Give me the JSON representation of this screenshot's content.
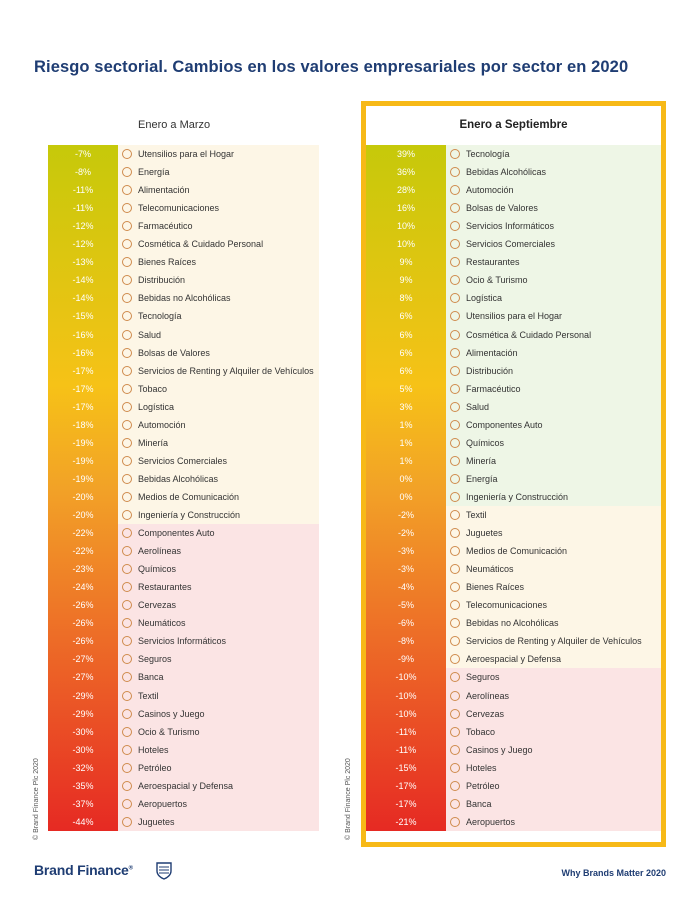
{
  "title": "Riesgo sectorial. Cambios en los valores empresariales por sector en 2020",
  "copyright": "© Brand Finance Plc 2020",
  "footer": "Why Brands Matter 2020",
  "brand": "Brand Finance",
  "brand_mark": "®",
  "colors": {
    "title": "#1f3d73",
    "highlight_frame": "#f7b917",
    "positive_zone": "#eef6e6",
    "neutral_zone": "#fdf6e6",
    "negative_zone": "#fbe4e4"
  },
  "chart_data": [
    {
      "type": "table",
      "title": "Enero a Marzo",
      "rows": [
        {
          "value": "-7%",
          "label": "Utensilios para el Hogar",
          "icon": "household-icon"
        },
        {
          "value": "-8%",
          "label": "Energía",
          "icon": "energy-icon"
        },
        {
          "value": "-11%",
          "label": "Alimentación",
          "icon": "food-icon"
        },
        {
          "value": "-11%",
          "label": "Telecomunicaciones",
          "icon": "telecom-icon"
        },
        {
          "value": "-12%",
          "label": "Farmacéutico",
          "icon": "pharma-icon"
        },
        {
          "value": "-12%",
          "label": "Cosmética & Cuidado Personal",
          "icon": "cosmetics-icon"
        },
        {
          "value": "-13%",
          "label": "Bienes Raíces",
          "icon": "real-estate-icon"
        },
        {
          "value": "-14%",
          "label": "Distribución",
          "icon": "retail-icon"
        },
        {
          "value": "-14%",
          "label": "Bebidas no Alcohólicas",
          "icon": "soft-drinks-icon"
        },
        {
          "value": "-15%",
          "label": "Tecnología",
          "icon": "tech-icon"
        },
        {
          "value": "-16%",
          "label": "Salud",
          "icon": "health-icon"
        },
        {
          "value": "-16%",
          "label": "Bolsas de Valores",
          "icon": "stock-exchange-icon"
        },
        {
          "value": "-17%",
          "label": "Servicios de Renting y Alquiler de Vehículos",
          "icon": "car-rental-icon"
        },
        {
          "value": "-17%",
          "label": "Tobaco",
          "icon": "tobacco-icon"
        },
        {
          "value": "-17%",
          "label": "Logística",
          "icon": "logistics-icon"
        },
        {
          "value": "-18%",
          "label": "Automoción",
          "icon": "auto-icon"
        },
        {
          "value": "-19%",
          "label": "Minería",
          "icon": "mining-icon"
        },
        {
          "value": "-19%",
          "label": "Servicios Comerciales",
          "icon": "commercial-services-icon"
        },
        {
          "value": "-19%",
          "label": "Bebidas Alcohólicas",
          "icon": "alcohol-icon"
        },
        {
          "value": "-20%",
          "label": "Medios de Comunicación",
          "icon": "media-icon"
        },
        {
          "value": "-20%",
          "label": "Ingeniería y Construcción",
          "icon": "construction-icon"
        },
        {
          "value": "-22%",
          "label": "Componentes Auto",
          "icon": "auto-components-icon"
        },
        {
          "value": "-22%",
          "label": "Aerolíneas",
          "icon": "airline-icon"
        },
        {
          "value": "-23%",
          "label": "Químicos",
          "icon": "chemicals-icon"
        },
        {
          "value": "-24%",
          "label": "Restaurantes",
          "icon": "restaurant-icon"
        },
        {
          "value": "-26%",
          "label": "Cervezas",
          "icon": "beer-icon"
        },
        {
          "value": "-26%",
          "label": "Neumáticos",
          "icon": "tyre-icon"
        },
        {
          "value": "-26%",
          "label": "Servicios Informáticos",
          "icon": "it-services-icon"
        },
        {
          "value": "-27%",
          "label": "Seguros",
          "icon": "insurance-icon"
        },
        {
          "value": "-27%",
          "label": "Banca",
          "icon": "bank-icon"
        },
        {
          "value": "-29%",
          "label": "Textil",
          "icon": "textile-icon"
        },
        {
          "value": "-29%",
          "label": "Casinos y Juego",
          "icon": "casino-icon"
        },
        {
          "value": "-30%",
          "label": "Ocio & Turismo",
          "icon": "leisure-icon"
        },
        {
          "value": "-30%",
          "label": "Hoteles",
          "icon": "hotel-icon"
        },
        {
          "value": "-32%",
          "label": "Petróleo",
          "icon": "oil-icon"
        },
        {
          "value": "-35%",
          "label": "Aeroespacial y Defensa",
          "icon": "aerospace-icon"
        },
        {
          "value": "-37%",
          "label": "Aeropuertos",
          "icon": "airport-icon"
        },
        {
          "value": "-44%",
          "label": "Juguetes",
          "icon": "toys-icon"
        }
      ]
    },
    {
      "type": "table",
      "title": "Enero a Septiembre",
      "rows": [
        {
          "value": "39%",
          "label": "Tecnología",
          "icon": "tech-icon"
        },
        {
          "value": "36%",
          "label": "Bebidas Alcohólicas",
          "icon": "alcohol-icon"
        },
        {
          "value": "28%",
          "label": "Automoción",
          "icon": "auto-icon"
        },
        {
          "value": "16%",
          "label": "Bolsas de Valores",
          "icon": "stock-exchange-icon"
        },
        {
          "value": "10%",
          "label": "Servicios Informáticos",
          "icon": "it-services-icon"
        },
        {
          "value": "10%",
          "label": "Servicios Comerciales",
          "icon": "commercial-services-icon"
        },
        {
          "value": "9%",
          "label": "Restaurantes",
          "icon": "restaurant-icon"
        },
        {
          "value": "9%",
          "label": "Ocio & Turismo",
          "icon": "leisure-icon"
        },
        {
          "value": "8%",
          "label": "Logística",
          "icon": "logistics-icon"
        },
        {
          "value": "6%",
          "label": "Utensilios para el Hogar",
          "icon": "household-icon"
        },
        {
          "value": "6%",
          "label": "Cosmética & Cuidado Personal",
          "icon": "cosmetics-icon"
        },
        {
          "value": "6%",
          "label": "Alimentación",
          "icon": "food-icon"
        },
        {
          "value": "6%",
          "label": "Distribución",
          "icon": "retail-icon"
        },
        {
          "value": "5%",
          "label": "Farmacéutico",
          "icon": "pharma-icon"
        },
        {
          "value": "3%",
          "label": "Salud",
          "icon": "health-icon"
        },
        {
          "value": "1%",
          "label": "Componentes Auto",
          "icon": "auto-components-icon"
        },
        {
          "value": "1%",
          "label": "Químicos",
          "icon": "chemicals-icon"
        },
        {
          "value": "1%",
          "label": "Minería",
          "icon": "mining-icon"
        },
        {
          "value": "0%",
          "label": "Energía",
          "icon": "energy-icon"
        },
        {
          "value": "0%",
          "label": "Ingeniería y Construcción",
          "icon": "construction-icon"
        },
        {
          "value": "-2%",
          "label": "Textil",
          "icon": "textile-icon"
        },
        {
          "value": "-2%",
          "label": "Juguetes",
          "icon": "toys-icon"
        },
        {
          "value": "-3%",
          "label": "Medios de Comunicación",
          "icon": "media-icon"
        },
        {
          "value": "-3%",
          "label": "Neumáticos",
          "icon": "tyre-icon"
        },
        {
          "value": "-4%",
          "label": "Bienes Raíces",
          "icon": "real-estate-icon"
        },
        {
          "value": "-5%",
          "label": "Telecomunicaciones",
          "icon": "telecom-icon"
        },
        {
          "value": "-6%",
          "label": "Bebidas no Alcohólicas",
          "icon": "soft-drinks-icon"
        },
        {
          "value": "-8%",
          "label": "Servicios de Renting y Alquiler de Vehículos",
          "icon": "car-rental-icon"
        },
        {
          "value": "-9%",
          "label": "Aeroespacial y Defensa",
          "icon": "aerospace-icon"
        },
        {
          "value": "-10%",
          "label": "Seguros",
          "icon": "insurance-icon"
        },
        {
          "value": "-10%",
          "label": "Aerolíneas",
          "icon": "airline-icon"
        },
        {
          "value": "-10%",
          "label": "Cervezas",
          "icon": "beer-icon"
        },
        {
          "value": "-11%",
          "label": "Tobaco",
          "icon": "tobacco-icon"
        },
        {
          "value": "-11%",
          "label": "Casinos y Juego",
          "icon": "casino-icon"
        },
        {
          "value": "-15%",
          "label": "Hoteles",
          "icon": "hotel-icon"
        },
        {
          "value": "-17%",
          "label": "Petróleo",
          "icon": "oil-icon"
        },
        {
          "value": "-17%",
          "label": "Banca",
          "icon": "bank-icon"
        },
        {
          "value": "-21%",
          "label": "Aeropuertos",
          "icon": "airport-icon"
        }
      ]
    }
  ]
}
